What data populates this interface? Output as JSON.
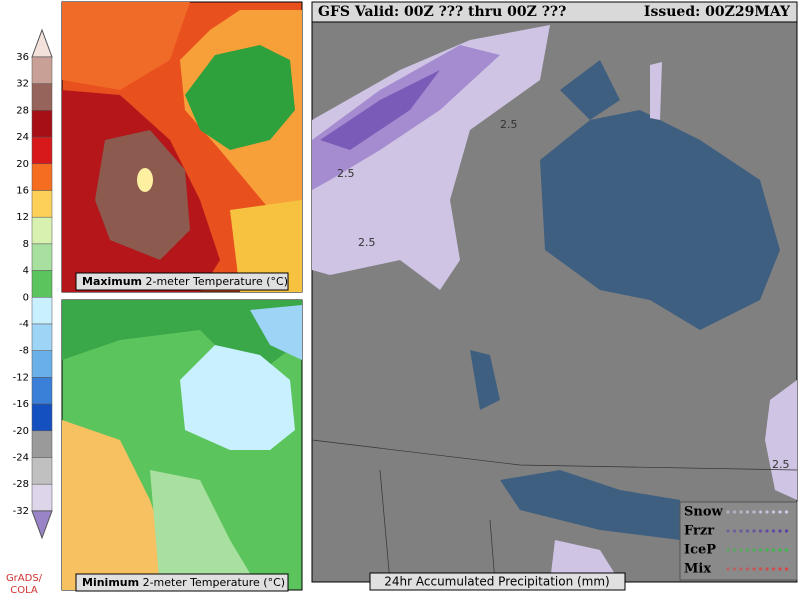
{
  "colorbar": {
    "labels": [
      36,
      32,
      28,
      24,
      20,
      16,
      12,
      8,
      4,
      0,
      -4,
      -8,
      -12,
      -16,
      -20,
      -24,
      -28,
      -32
    ]
  },
  "credit": [
    "GrADS/",
    "COLA"
  ],
  "panels": {
    "max_temp": {
      "bold": "Maximum",
      "label": "2-meter Temperature (°C)"
    },
    "min_temp": {
      "bold": "Minimum",
      "label": "2-meter Temperature (°C)"
    },
    "precip": {
      "header_left": "GFS Valid: 00Z ??? thru 00Z ???",
      "header_right": "Issued: 00Z29MAY",
      "footer": "24hr Accumulated Precipitation (mm)",
      "contour_labels": [
        "2.5",
        "2.5",
        "2.5",
        "2.5"
      ],
      "legend": [
        "Snow",
        "Frzr",
        "IceP",
        "Mix"
      ]
    }
  }
}
